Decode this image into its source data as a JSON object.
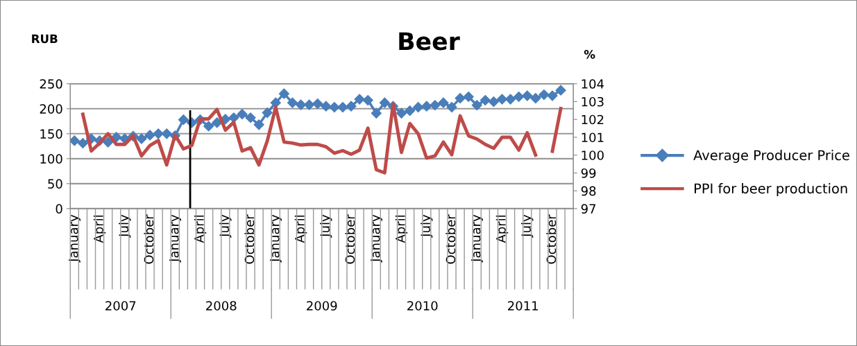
{
  "chart_data": {
    "type": "line",
    "title": "Beer",
    "ylabel": "RUB",
    "y2label": "%",
    "categories": [
      "January",
      null,
      null,
      "April",
      null,
      null,
      "July",
      null,
      null,
      "October",
      null,
      null,
      "January",
      null,
      null,
      "April",
      null,
      null,
      "July",
      null,
      null,
      "October",
      null,
      null,
      "January",
      null,
      null,
      "April",
      null,
      null,
      "July",
      null,
      null,
      "October",
      null,
      null,
      "January",
      null,
      null,
      "April",
      null,
      null,
      "July",
      null,
      null,
      "October",
      null,
      null,
      "January",
      null,
      null,
      "April",
      null,
      null,
      "July",
      null,
      null,
      "October",
      null,
      null
    ],
    "annotations": [
      "2007",
      "2008",
      "2009",
      "2010",
      "2011"
    ],
    "series": [
      {
        "name": "Average Producer Price",
        "color": "#4a7ebb",
        "values": [
          136,
          131,
          140,
          136,
          133,
          143,
          140,
          145,
          140,
          147,
          150,
          150,
          146,
          178,
          172,
          178,
          165,
          172,
          179,
          182,
          189,
          182,
          168,
          192,
          212,
          230,
          212,
          208,
          208,
          210,
          205,
          203,
          203,
          205,
          219,
          217,
          191,
          212,
          205,
          191,
          196,
          203,
          205,
          207,
          212,
          203,
          221,
          224,
          207,
          217,
          214,
          219,
          219,
          224,
          226,
          221,
          228,
          226,
          237,
          null
        ]
      },
      {
        "name": "PPI for beer production",
        "color": "#be4b48",
        "axis": "y2",
        "marker": "none",
        "values": [
          null,
          102.29,
          100.23,
          100.67,
          101.2,
          100.6,
          100.6,
          101.08,
          99.96,
          100.54,
          100.82,
          99.45,
          101.12,
          100.35,
          100.54,
          102.03,
          102.03,
          102.56,
          101.4,
          101.84,
          100.23,
          100.42,
          99.45,
          100.8,
          102.68,
          100.73,
          100.67,
          100.57,
          100.6,
          100.6,
          100.47,
          100.11,
          100.25,
          100.05,
          100.28,
          101.51,
          99.18,
          99.01,
          102.87,
          100.15,
          101.77,
          101.19,
          99.83,
          99.96,
          100.73,
          100.02,
          102.2,
          101.08,
          100.9,
          100.6,
          100.38,
          101.0,
          101.0,
          100.28,
          101.25,
          100.0,
          null,
          100.22,
          102.61,
          null
        ]
      }
    ],
    "ylim": [
      0,
      250
    ],
    "yticks": [
      0,
      50,
      100,
      150,
      200,
      250
    ],
    "y2lim": [
      97,
      104
    ],
    "y2ticks": [
      97,
      98,
      99,
      100,
      101,
      102,
      103,
      104
    ],
    "grid": "y",
    "marker": "diamond",
    "legend": "right",
    "line_style": "solid"
  }
}
